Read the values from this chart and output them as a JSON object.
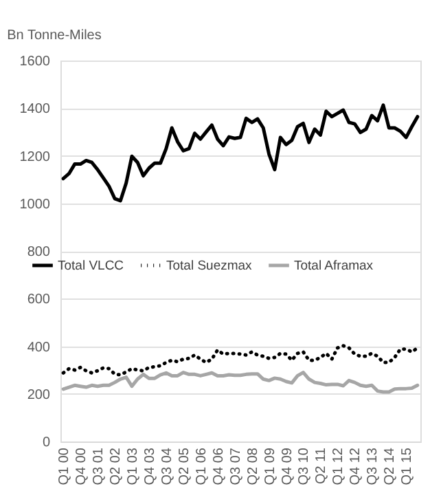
{
  "chart_data": {
    "type": "line",
    "ylabel": "Bn Tonne-Miles",
    "categories": [
      "Q1 00",
      null,
      null,
      "Q4 00",
      null,
      null,
      "Q3 01",
      null,
      null,
      "Q2 02",
      null,
      null,
      "Q1 03",
      null,
      null,
      "Q4 03",
      null,
      null,
      "Q3 04",
      null,
      null,
      "Q2 05",
      null,
      null,
      "Q1 06",
      null,
      null,
      "Q4 06",
      null,
      null,
      "Q3 07",
      null,
      null,
      "Q2 08",
      null,
      null,
      "Q1 09",
      null,
      null,
      "Q4 09",
      null,
      null,
      "Q3 10",
      null,
      null,
      "Q2 11",
      null,
      null,
      "Q1 12",
      null,
      null,
      "Q4 12",
      null,
      null,
      "Q3 13",
      null,
      null,
      "Q2 14",
      null,
      null,
      "Q1 15",
      null,
      null
    ],
    "series": [
      {
        "name": "Total VLCC",
        "color": "#000000",
        "line_style": "solid",
        "values": [
          1104,
          1125,
          1165,
          1165,
          1180,
          1172,
          1142,
          1107,
          1072,
          1020,
          1011,
          1085,
          1198,
          1172,
          1116,
          1148,
          1169,
          1169,
          1230,
          1317,
          1259,
          1221,
          1230,
          1294,
          1270,
          1300,
          1329,
          1270,
          1242,
          1279,
          1273,
          1277,
          1357,
          1340,
          1355,
          1317,
          1207,
          1142,
          1277,
          1247,
          1265,
          1322,
          1336,
          1256,
          1312,
          1287,
          1387,
          1364,
          1378,
          1392,
          1340,
          1334,
          1298,
          1312,
          1369,
          1347,
          1413,
          1317,
          1317,
          1303,
          1277,
          1322,
          1364
        ]
      },
      {
        "name": "Total Suezmax",
        "color": "#000000",
        "line_style": "dotted",
        "values": [
          288,
          306,
          300,
          311,
          297,
          288,
          297,
          309,
          306,
          283,
          280,
          292,
          306,
          300,
          297,
          311,
          314,
          318,
          332,
          341,
          335,
          346,
          349,
          363,
          346,
          332,
          346,
          384,
          367,
          370,
          370,
          367,
          363,
          376,
          363,
          358,
          349,
          353,
          370,
          367,
          341,
          370,
          376,
          341,
          341,
          353,
          370,
          346,
          393,
          402,
          393,
          367,
          358,
          358,
          370,
          358,
          332,
          332,
          353,
          388,
          388,
          376,
          393
        ]
      },
      {
        "name": "Total Aframax",
        "color": "#a6a6a6",
        "line_style": "solid",
        "values": [
          220,
          228,
          236,
          232,
          228,
          236,
          232,
          236,
          236,
          248,
          262,
          270,
          232,
          262,
          282,
          265,
          265,
          280,
          288,
          276,
          276,
          290,
          282,
          282,
          276,
          282,
          288,
          276,
          276,
          280,
          278,
          278,
          282,
          284,
          284,
          262,
          256,
          266,
          262,
          252,
          246,
          276,
          290,
          262,
          248,
          244,
          238,
          240,
          240,
          234,
          256,
          248,
          236,
          232,
          236,
          212,
          208,
          208,
          220,
          222,
          222,
          224,
          236
        ]
      }
    ],
    "ylim": [
      0,
      1600
    ],
    "yticks": [
      0,
      200,
      400,
      600,
      800,
      1000,
      1200,
      1400,
      1600
    ],
    "grid": "y",
    "legend": "center",
    "marker": "none"
  }
}
